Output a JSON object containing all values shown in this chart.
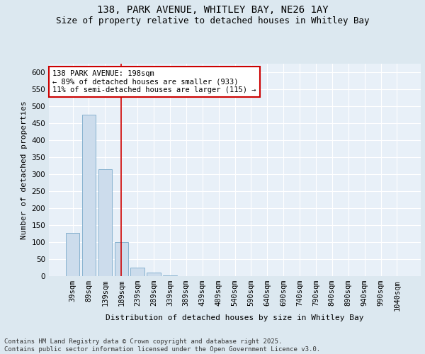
{
  "title_line1": "138, PARK AVENUE, WHITLEY BAY, NE26 1AY",
  "title_line2": "Size of property relative to detached houses in Whitley Bay",
  "xlabel": "Distribution of detached houses by size in Whitley Bay",
  "ylabel": "Number of detached properties",
  "categories": [
    "39sqm",
    "89sqm",
    "139sqm",
    "189sqm",
    "239sqm",
    "289sqm",
    "339sqm",
    "389sqm",
    "439sqm",
    "489sqm",
    "540sqm",
    "590sqm",
    "640sqm",
    "690sqm",
    "740sqm",
    "790sqm",
    "840sqm",
    "890sqm",
    "940sqm",
    "990sqm",
    "1040sqm"
  ],
  "values": [
    128,
    475,
    315,
    99,
    25,
    11,
    2,
    1,
    0,
    0,
    0,
    0,
    0,
    0,
    0,
    0,
    0,
    0,
    0,
    0,
    1
  ],
  "bar_color": "#ccdcec",
  "bar_edge_color": "#7aaaca",
  "property_line_color": "#cc0000",
  "property_line_x": 3.0,
  "annotation_text": "138 PARK AVENUE: 198sqm\n← 89% of detached houses are smaller (933)\n11% of semi-detached houses are larger (115) →",
  "annotation_box_facecolor": "#ffffff",
  "annotation_box_edgecolor": "#cc0000",
  "ylim": [
    0,
    625
  ],
  "yticks": [
    0,
    50,
    100,
    150,
    200,
    250,
    300,
    350,
    400,
    450,
    500,
    550,
    600
  ],
  "bg_color": "#dce8f0",
  "plot_bg_color": "#e8f0f8",
  "grid_color": "#ffffff",
  "footer_text": "Contains HM Land Registry data © Crown copyright and database right 2025.\nContains public sector information licensed under the Open Government Licence v3.0.",
  "title_fontsize": 10,
  "subtitle_fontsize": 9,
  "axis_label_fontsize": 8,
  "tick_fontsize": 7.5,
  "annotation_fontsize": 7.5,
  "footer_fontsize": 6.5
}
